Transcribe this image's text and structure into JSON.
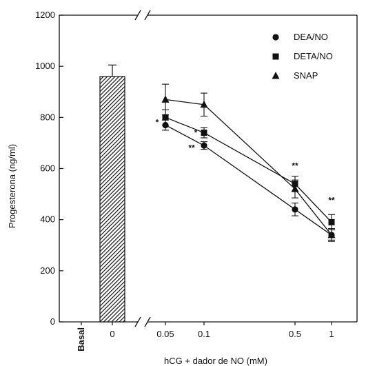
{
  "chart_data": {
    "type": "line",
    "title": "",
    "xlabel": "hCG + dador de NO (mM)",
    "ylabel": "Progesterona (ng/ml)",
    "ylim": [
      0,
      1200
    ],
    "yticks": [
      "0",
      "200",
      "400",
      "600",
      "800",
      "1000",
      "1200"
    ],
    "x_categories": [
      "Basal",
      "0",
      "0.05",
      "0.1",
      "0.5",
      "1"
    ],
    "bars": [
      {
        "category": "Basal",
        "value": 0,
        "error": 0,
        "pattern": "none"
      },
      {
        "category": "0",
        "value": 960,
        "error": 45,
        "pattern": "hatched"
      }
    ],
    "line_x": [
      "0.05",
      "0.1",
      "0.5",
      "1"
    ],
    "series": [
      {
        "name": "DEA/NO",
        "marker": "circle",
        "values": [
          770,
          690,
          440,
          340
        ],
        "errors": [
          20,
          15,
          25,
          25
        ]
      },
      {
        "name": "DETA/NO",
        "marker": "square",
        "values": [
          800,
          740,
          540,
          390
        ],
        "errors": [
          30,
          20,
          30,
          30
        ]
      },
      {
        "name": "SNAP",
        "marker": "triangle",
        "values": [
          870,
          850,
          520,
          340
        ],
        "errors": [
          60,
          45,
          35,
          20
        ]
      }
    ],
    "annotations": [
      {
        "text": "*",
        "x": "0.05"
      },
      {
        "text": "*",
        "x": "0.1"
      },
      {
        "text": "**",
        "x": "0.1"
      },
      {
        "text": "**",
        "x": "0.5"
      },
      {
        "text": "**",
        "x": "1"
      }
    ],
    "legend_position": "top-right",
    "grid": false,
    "axis_break": true
  }
}
